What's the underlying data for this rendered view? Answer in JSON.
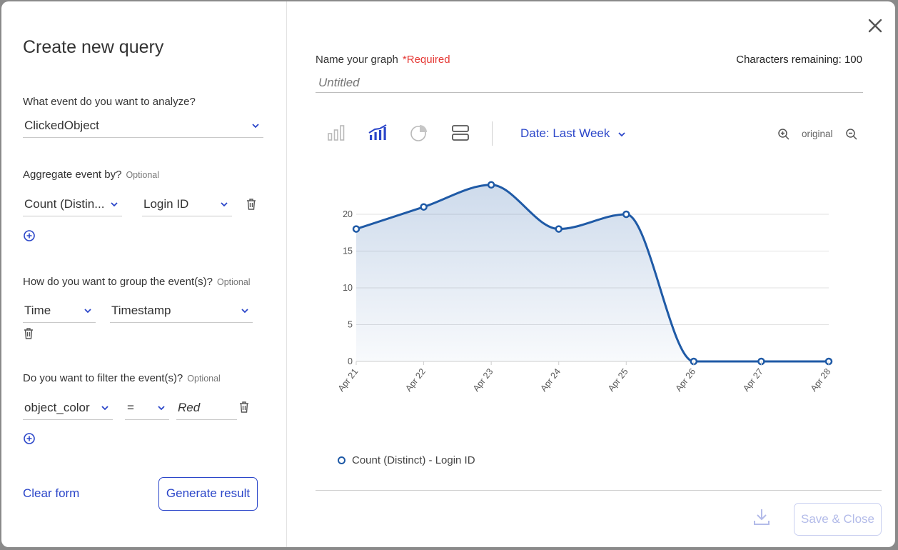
{
  "left": {
    "title": "Create new query",
    "event_question": "What event do you want to analyze?",
    "event_value": "ClickedObject",
    "aggregate_question": "Aggregate event by?",
    "aggregate_optional": "Optional",
    "aggregate_function": "Count (Distin...",
    "aggregate_field": "Login ID",
    "group_question": "How do you want to group the event(s)?",
    "group_optional": "Optional",
    "group_type": "Time",
    "group_field": "Timestamp",
    "filter_question": "Do you want to filter the event(s)?",
    "filter_optional": "Optional",
    "filter_field": "object_color",
    "filter_operator": "=",
    "filter_value": "Red",
    "clear_label": "Clear form",
    "generate_label": "Generate result"
  },
  "right": {
    "name_label": "Name your graph",
    "required_label": "*Required",
    "chars_remaining": "Characters remaining: 100",
    "name_placeholder": "Untitled",
    "date_range_label": "Date: Last Week",
    "zoom_original": "original",
    "save_label": "Save & Close"
  },
  "colors": {
    "accent": "#2b46c9",
    "series": "#1f5aa6",
    "required": "#e53935"
  },
  "chart_data": {
    "type": "area",
    "categories": [
      "Apr 21",
      "Apr 22",
      "Apr 23",
      "Apr 24",
      "Apr 25",
      "Apr 26",
      "Apr 27",
      "Apr 28"
    ],
    "series": [
      {
        "name": "Count (Distinct) - Login ID",
        "values": [
          18,
          21,
          24,
          18,
          20,
          0,
          0,
          0
        ]
      }
    ],
    "ylim": [
      0,
      20
    ],
    "yticks": [
      0,
      5,
      10,
      15,
      20
    ],
    "grid": true,
    "legend_position": "bottom-left"
  }
}
